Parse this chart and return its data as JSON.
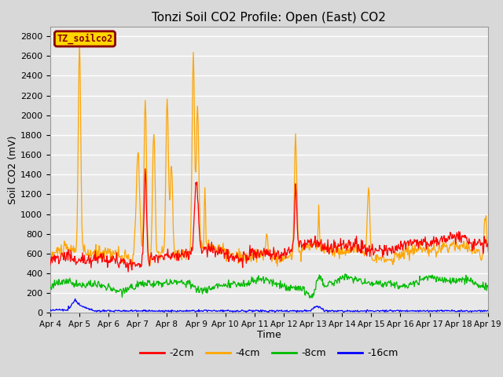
{
  "title": "Tonzi Soil CO2 Profile: Open (East) CO2",
  "xlabel": "Time",
  "ylabel": "Soil CO2 (mV)",
  "ylim": [
    0,
    2900
  ],
  "yticks": [
    0,
    200,
    400,
    600,
    800,
    1000,
    1200,
    1400,
    1600,
    1800,
    2000,
    2200,
    2400,
    2600,
    2800
  ],
  "xtick_labels": [
    "Apr 4",
    "Apr 5",
    "Apr 6",
    "Apr 7",
    "Apr 8",
    "Apr 9",
    "Apr 10",
    "Apr 11",
    "Apr 12",
    "Apr 13",
    "Apr 14",
    "Apr 15",
    "Apr 16",
    "Apr 17",
    "Apr 18",
    "Apr 19"
  ],
  "legend_label": "TZ_soilco2",
  "legend_box_facecolor": "#FFD700",
  "legend_box_edgecolor": "#8B0000",
  "legend_text_color": "#8B0000",
  "series_labels": [
    "-2cm",
    "-4cm",
    "-8cm",
    "-16cm"
  ],
  "series_colors": [
    "#FF0000",
    "#FFA500",
    "#00BB00",
    "#0000FF"
  ],
  "fig_facecolor": "#D8D8D8",
  "ax_facecolor": "#E8E8E8",
  "grid_color": "#FFFFFF"
}
